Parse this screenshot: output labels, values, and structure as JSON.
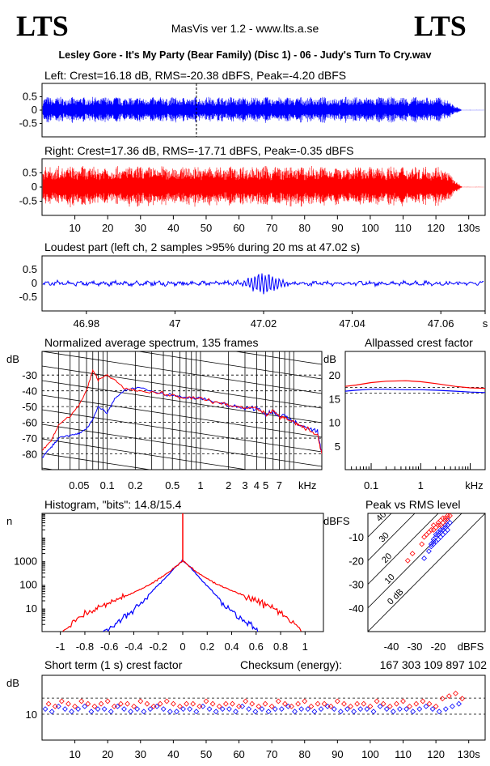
{
  "header": {
    "logo_left": "LTS",
    "logo_right": "LTS",
    "app_title": "MasVis ver 1.2 - www.lts.a.se",
    "track_title": "Lesley Gore - It's My Party (Bear Family) (Disc 1) - 06 - Judy's Turn To Cry.wav"
  },
  "colors": {
    "left_channel": "#0000ff",
    "right_channel": "#ff0000"
  },
  "chart_data": [
    {
      "id": "left_waveform",
      "type": "area",
      "title": "Left: Crest=16.18 dB, RMS=-20.38 dBFS, Peak=-4.20 dBFS",
      "ylim": [
        -1,
        1
      ],
      "yticks": [
        "0.5",
        "0",
        "-0.5"
      ],
      "ytick_values": [
        0.5,
        0,
        -0.5
      ],
      "xlim": [
        0,
        135
      ],
      "marker_time_s": 47.02,
      "envelope": {
        "amplitude": 0.5,
        "fade_start_s": 122,
        "end_s": 128
      }
    },
    {
      "id": "right_waveform",
      "type": "area",
      "title": "Right: Crest=17.36 dB, RMS=-17.71 dBFS, Peak=-0.35 dBFS",
      "ylim": [
        -1,
        1
      ],
      "yticks": [
        "0.5",
        "0",
        "-0.5"
      ],
      "ytick_values": [
        0.5,
        0,
        -0.5
      ],
      "xlim": [
        0,
        135
      ],
      "xticks": [
        "10",
        "20",
        "30",
        "40",
        "50",
        "60",
        "70",
        "80",
        "90",
        "100",
        "110",
        "120",
        "130s"
      ],
      "xtick_values": [
        10,
        20,
        30,
        40,
        50,
        60,
        70,
        80,
        90,
        100,
        110,
        120,
        130
      ],
      "envelope": {
        "amplitude": 0.75,
        "fade_start_s": 122,
        "end_s": 128
      }
    },
    {
      "id": "loudest_part",
      "type": "line",
      "title": "Loudest part (left  ch, 2 samples >95% during 20 ms at 47.02 s)",
      "ylim": [
        -1,
        1
      ],
      "yticks": [
        "0.5",
        "0",
        "-0.5"
      ],
      "ytick_values": [
        0.5,
        0,
        -0.5
      ],
      "xlim": [
        46.97,
        47.07
      ],
      "xticks": [
        "46.98",
        "47",
        "47.02",
        "47.04",
        "47.06",
        "s"
      ],
      "xtick_values": [
        46.98,
        47.0,
        47.02,
        47.04,
        47.06,
        47.07
      ]
    },
    {
      "id": "spectrum",
      "type": "line",
      "title": "Normalized average spectrum, 135 frames",
      "ylabel": "dB",
      "xscale": "log",
      "xlim": [
        0.02,
        20
      ],
      "ylim": [
        -90,
        -15
      ],
      "yticks": [
        "-30",
        "-40",
        "-50",
        "-60",
        "-70",
        "-80"
      ],
      "ytick_values": [
        -30,
        -40,
        -50,
        -60,
        -70,
        -80
      ],
      "xticks": [
        "0.05",
        "0.1",
        "0.2",
        "0.5",
        "1",
        "2",
        "3",
        "4",
        "5",
        "7",
        "kHz"
      ],
      "xtick_values": [
        0.05,
        0.1,
        0.2,
        0.5,
        1,
        2,
        3,
        4,
        5,
        7,
        14
      ],
      "series": [
        {
          "x": [
            0.02,
            0.025,
            0.03,
            0.04,
            0.05,
            0.06,
            0.07,
            0.08,
            0.1,
            0.12,
            0.15,
            0.2,
            0.3,
            0.5,
            0.7,
            1,
            1.5,
            2,
            3,
            4,
            5,
            6,
            7,
            8,
            10,
            12,
            15,
            18,
            20
          ],
          "y": [
            -82,
            -76,
            -70,
            -68,
            -67,
            -64,
            -58,
            -50,
            -54,
            -45,
            -40,
            -38,
            -40,
            -43,
            -44,
            -45,
            -47,
            -49,
            -51,
            -51,
            -55,
            -53,
            -57,
            -55,
            -60,
            -62,
            -64,
            -66,
            -80
          ]
        },
        {
          "x": [
            0.02,
            0.025,
            0.03,
            0.04,
            0.05,
            0.06,
            0.07,
            0.08,
            0.1,
            0.12,
            0.15,
            0.2,
            0.3,
            0.5,
            0.7,
            1,
            1.5,
            2,
            3,
            4,
            5,
            6,
            7,
            8,
            10,
            12,
            15,
            18,
            20
          ],
          "y": [
            -78,
            -72,
            -62,
            -56,
            -49,
            -40,
            -27,
            -33,
            -30,
            -33,
            -38,
            -40,
            -41,
            -43,
            -44,
            -45,
            -47,
            -49,
            -50,
            -51,
            -55,
            -53,
            -56,
            -57,
            -60,
            -62,
            -65,
            -68,
            -80
          ]
        }
      ]
    },
    {
      "id": "allpassed_crest",
      "type": "line",
      "title": "Allpassed crest factor",
      "ylabel": "dB",
      "xscale": "log",
      "xlim": [
        0.03,
        20
      ],
      "ylim": [
        0,
        25
      ],
      "yticks": [
        "20",
        "15",
        "10",
        "5"
      ],
      "ytick_values": [
        20,
        15,
        10,
        5
      ],
      "xticks": [
        "0.1",
        "1",
        "kHz"
      ],
      "xtick_values": [
        0.1,
        1,
        12
      ],
      "reference_lines": [
        16.2,
        17.4
      ],
      "series": [
        {
          "x": [
            0.03,
            0.05,
            0.1,
            0.2,
            0.5,
            1,
            2,
            5,
            10,
            20
          ],
          "y": [
            16.6,
            16.8,
            17.0,
            17.0,
            16.9,
            16.9,
            16.8,
            16.6,
            16.4,
            16.3
          ]
        },
        {
          "x": [
            0.03,
            0.05,
            0.1,
            0.2,
            0.5,
            1,
            2,
            5,
            10,
            20
          ],
          "y": [
            17.6,
            17.9,
            18.4,
            18.7,
            18.8,
            18.6,
            18.2,
            17.6,
            17.3,
            17.2
          ]
        }
      ]
    },
    {
      "id": "histogram",
      "type": "line",
      "title": "Histogram, \"bits\": 14.8/15.4",
      "ylabel": "n",
      "yscale": "log",
      "xlim": [
        -1.15,
        1.15
      ],
      "ylim": [
        1,
        100000
      ],
      "yticks": [
        "1000",
        "100",
        "10"
      ],
      "ytick_values": [
        1000,
        100,
        10
      ],
      "xticks": [
        "-1",
        "-0.8",
        "-0.6",
        "-0.4",
        "-0.2",
        "0",
        "0.2",
        "0.4",
        "0.6",
        "0.8",
        "1"
      ],
      "xtick_values": [
        -1,
        -0.8,
        -0.6,
        -0.4,
        -0.2,
        0,
        0.2,
        0.4,
        0.6,
        0.8,
        1
      ],
      "series": [
        {
          "x": [
            -0.65,
            -0.55,
            -0.45,
            -0.35,
            -0.25,
            -0.15,
            -0.05,
            0,
            0.05,
            0.15,
            0.25,
            0.35,
            0.45,
            0.55,
            0.62
          ],
          "y": [
            1,
            2,
            5,
            15,
            50,
            170,
            600,
            1000,
            600,
            160,
            45,
            12,
            4,
            2,
            1
          ]
        },
        {
          "x": [
            -0.98,
            -0.85,
            -0.75,
            -0.65,
            -0.55,
            -0.45,
            -0.35,
            -0.25,
            -0.15,
            -0.05,
            0,
            0.05,
            0.15,
            0.25,
            0.35,
            0.45,
            0.55,
            0.65,
            0.75,
            0.85,
            0.98
          ],
          "y": [
            1,
            4,
            8,
            12,
            20,
            35,
            60,
            110,
            240,
            600,
            1000,
            600,
            250,
            120,
            70,
            42,
            26,
            16,
            9,
            4,
            1
          ]
        }
      ]
    },
    {
      "id": "peak_vs_rms",
      "type": "scatter",
      "title": "Peak vs RMS level",
      "ylabel": "dBFS",
      "xlabel": "dBFS",
      "xlim": [
        -50,
        0
      ],
      "ylim": [
        -50,
        0
      ],
      "yticks": [
        "-10",
        "-20",
        "-30",
        "-40"
      ],
      "ytick_values": [
        -10,
        -20,
        -30,
        -40
      ],
      "xticks": [
        "-40",
        "-30",
        "-20"
      ],
      "xtick_values": [
        -40,
        -30,
        -20
      ],
      "crest_lines": [
        "40",
        "30",
        "20",
        "10",
        "0 dB"
      ],
      "crest_values": [
        40,
        30,
        20,
        10,
        0
      ],
      "series": [
        {
          "x": [
            -26,
            -24,
            -23,
            -22,
            -22,
            -21,
            -21,
            -20,
            -20,
            -19,
            -19,
            -18,
            -18,
            -17,
            -17,
            -16,
            -16,
            -15,
            -19,
            -20,
            -21,
            -18,
            -17,
            -16,
            -22,
            -23
          ],
          "y": [
            -19,
            -16,
            -14,
            -13,
            -12,
            -12,
            -10,
            -11,
            -9,
            -10,
            -8,
            -9,
            -7,
            -8,
            -6,
            -7,
            -5,
            -4,
            -7,
            -8,
            -9,
            -6,
            -5,
            -3,
            -11,
            -13
          ]
        },
        {
          "x": [
            -33,
            -31,
            -27,
            -26,
            -25,
            -24,
            -23,
            -22,
            -21,
            -20,
            -19,
            -18,
            -18,
            -17,
            -16,
            -15,
            -16,
            -19,
            -20,
            -17,
            -22
          ],
          "y": [
            -20,
            -17,
            -13,
            -10,
            -9,
            -8,
            -7,
            -7,
            -6,
            -5,
            -5,
            -4,
            -2,
            -3,
            -2,
            -1,
            -1,
            -3,
            -4,
            -2,
            -5
          ]
        }
      ]
    },
    {
      "id": "short_term_crest",
      "type": "scatter",
      "title": "Short term (1 s) crest factor",
      "ylabel": "dB",
      "ylim": [
        0,
        25
      ],
      "yticks": [
        "10"
      ],
      "ytick_values": [
        10
      ],
      "reference_lines": [
        16.2,
        10
      ],
      "xlim": [
        0,
        135
      ],
      "xticks": [
        "10",
        "20",
        "30",
        "40",
        "50",
        "60",
        "70",
        "80",
        "90",
        "100",
        "110",
        "120",
        "130s"
      ],
      "xtick_values": [
        10,
        20,
        30,
        40,
        50,
        60,
        70,
        80,
        90,
        100,
        110,
        120,
        130
      ],
      "checksum_label": "Checksum (energy):",
      "checksum_value": "167 303 109 897 102",
      "series": [
        {
          "x": [
            1,
            3,
            5,
            7,
            9,
            11,
            13,
            15,
            17,
            19,
            21,
            23,
            25,
            27,
            29,
            31,
            33,
            35,
            37,
            39,
            41,
            43,
            45,
            47,
            49,
            51,
            53,
            55,
            57,
            59,
            61,
            63,
            65,
            67,
            69,
            71,
            73,
            75,
            77,
            79,
            81,
            83,
            85,
            87,
            89,
            91,
            93,
            95,
            97,
            99,
            101,
            103,
            105,
            107,
            109,
            111,
            113,
            115,
            117,
            119,
            121,
            123,
            125,
            127
          ],
          "y": [
            12,
            11,
            13,
            12,
            11,
            12,
            13,
            11,
            12,
            12,
            11,
            13,
            12,
            11,
            12,
            11,
            12,
            13,
            12,
            11,
            11,
            12,
            12,
            11,
            13,
            12,
            11,
            12,
            12,
            11,
            13,
            12,
            11,
            12,
            11,
            12,
            12,
            13,
            11,
            12,
            12,
            11,
            12,
            13,
            12,
            11,
            12,
            11,
            12,
            12,
            11,
            13,
            12,
            11,
            12,
            12,
            11,
            12,
            13,
            12,
            11,
            12,
            13,
            14
          ]
        },
        {
          "x": [
            2,
            4,
            6,
            8,
            10,
            12,
            14,
            16,
            18,
            20,
            22,
            24,
            26,
            28,
            30,
            32,
            34,
            36,
            38,
            40,
            42,
            44,
            46,
            48,
            50,
            52,
            54,
            56,
            58,
            60,
            62,
            64,
            66,
            68,
            70,
            72,
            74,
            76,
            78,
            80,
            82,
            84,
            86,
            88,
            90,
            92,
            94,
            96,
            98,
            100,
            102,
            104,
            106,
            108,
            110,
            112,
            114,
            116,
            118,
            120,
            122,
            124,
            126,
            128
          ],
          "y": [
            14,
            13,
            15,
            14,
            13,
            15,
            14,
            13,
            14,
            15,
            13,
            14,
            14,
            13,
            15,
            14,
            13,
            14,
            15,
            14,
            13,
            14,
            14,
            13,
            15,
            14,
            13,
            14,
            14,
            13,
            15,
            14,
            13,
            14,
            13,
            15,
            14,
            13,
            14,
            15,
            13,
            14,
            14,
            13,
            15,
            14,
            13,
            14,
            14,
            13,
            15,
            14,
            13,
            14,
            15,
            13,
            14,
            15,
            14,
            13,
            16,
            17,
            18,
            16
          ]
        }
      ]
    }
  ]
}
